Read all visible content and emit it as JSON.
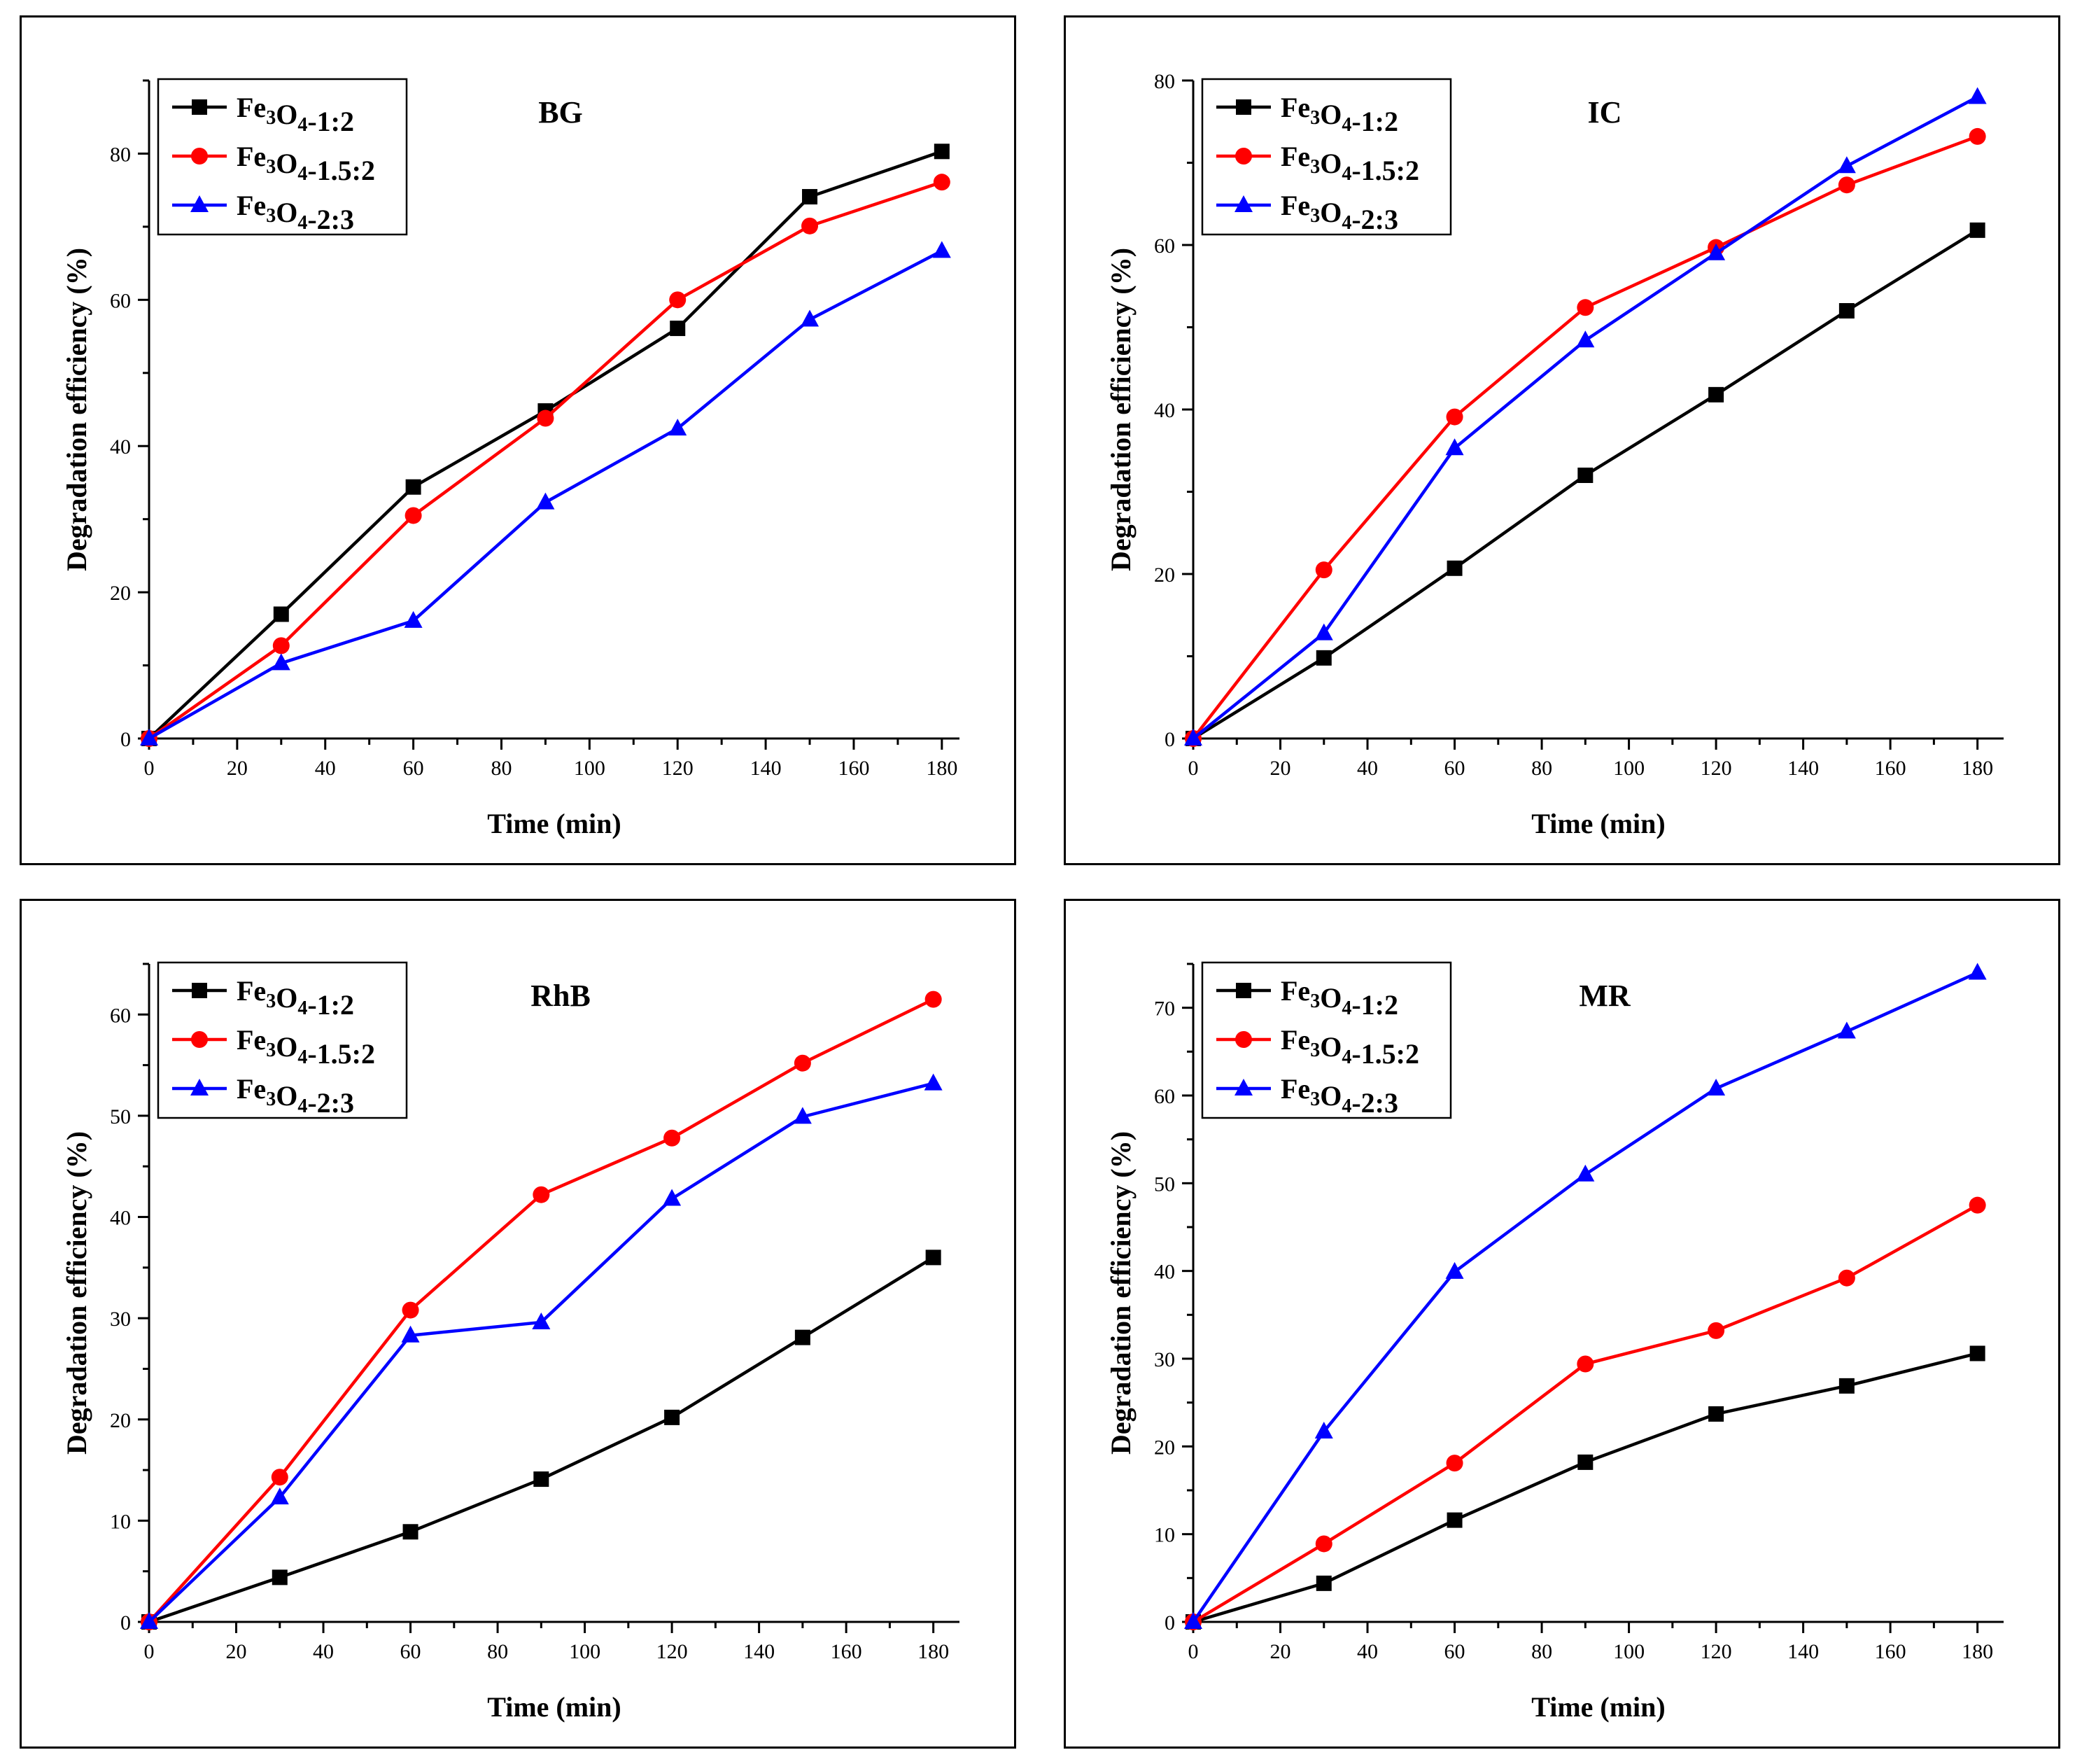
{
  "series_names": [
    "Fe3O4-1:2",
    "Fe3O4-1.5:2",
    "Fe3O4-2:3"
  ],
  "chart_data": [
    {
      "type": "line",
      "title": "BG",
      "xlabel": "Time (min)",
      "ylabel": "Degradation efficiency (%)",
      "x": [
        0,
        30,
        60,
        90,
        120,
        150,
        180
      ],
      "xlim": [
        0,
        184
      ],
      "ylim": [
        0,
        90
      ],
      "xticks": [
        0,
        20,
        40,
        60,
        80,
        100,
        120,
        140,
        160,
        180
      ],
      "yticks": [
        0,
        20,
        40,
        60,
        80
      ],
      "legend_position": "top-left",
      "series": [
        {
          "name": "Fe3O4-1:2",
          "color": "#000000",
          "marker": "square",
          "values": [
            0,
            17.0,
            34.4,
            44.8,
            56.1,
            74.1,
            80.3
          ]
        },
        {
          "name": "Fe3O4-1.5:2",
          "color": "#ff0000",
          "marker": "circle",
          "values": [
            0,
            12.7,
            30.5,
            43.8,
            60.0,
            70.1,
            76.1
          ]
        },
        {
          "name": "Fe3O4-2:3",
          "color": "#0000ff",
          "marker": "triangle",
          "values": [
            0,
            10.3,
            16.1,
            32.3,
            42.4,
            57.3,
            66.7
          ]
        }
      ]
    },
    {
      "type": "line",
      "title": "IC",
      "xlabel": "Time (min)",
      "ylabel": "Degradation efficiency (%)",
      "x": [
        0,
        30,
        60,
        90,
        120,
        150,
        180
      ],
      "xlim": [
        0,
        186
      ],
      "ylim": [
        0,
        80
      ],
      "xticks": [
        0,
        20,
        40,
        60,
        80,
        100,
        120,
        140,
        160,
        180
      ],
      "yticks": [
        0,
        20,
        40,
        60,
        80
      ],
      "legend_position": "top-left",
      "series": [
        {
          "name": "Fe3O4-1:2",
          "color": "#000000",
          "marker": "square",
          "values": [
            0,
            9.8,
            20.7,
            32.0,
            41.8,
            52.0,
            61.8
          ]
        },
        {
          "name": "Fe3O4-1.5:2",
          "color": "#ff0000",
          "marker": "circle",
          "values": [
            0,
            20.5,
            39.1,
            52.4,
            59.7,
            67.3,
            73.2
          ]
        },
        {
          "name": "Fe3O4-2:3",
          "color": "#0000ff",
          "marker": "triangle",
          "values": [
            0,
            12.8,
            35.3,
            48.4,
            59.0,
            69.6,
            78.0
          ]
        }
      ]
    },
    {
      "type": "line",
      "title": "RhB",
      "xlabel": "Time (min)",
      "ylabel": "Degradation efficiency (%)",
      "x": [
        0,
        30,
        60,
        90,
        120,
        150,
        180
      ],
      "xlim": [
        0,
        186
      ],
      "ylim": [
        0,
        65
      ],
      "xticks": [
        0,
        20,
        40,
        60,
        80,
        100,
        120,
        140,
        160,
        180
      ],
      "yticks": [
        0,
        10,
        20,
        30,
        40,
        50,
        60
      ],
      "legend_position": "top-left",
      "series": [
        {
          "name": "Fe3O4-1:2",
          "color": "#000000",
          "marker": "square",
          "values": [
            0,
            4.4,
            8.9,
            14.1,
            20.2,
            28.1,
            36.0
          ]
        },
        {
          "name": "Fe3O4-1.5:2",
          "color": "#ff0000",
          "marker": "circle",
          "values": [
            0,
            14.3,
            30.8,
            42.2,
            47.8,
            55.2,
            61.5
          ]
        },
        {
          "name": "Fe3O4-2:3",
          "color": "#0000ff",
          "marker": "triangle",
          "values": [
            0,
            12.3,
            28.3,
            29.6,
            41.8,
            49.9,
            53.2
          ]
        }
      ]
    },
    {
      "type": "line",
      "title": "MR",
      "xlabel": "Time (min)",
      "ylabel": "Degradation efficiency (%)",
      "x": [
        0,
        30,
        60,
        90,
        120,
        150,
        180
      ],
      "xlim": [
        0,
        186
      ],
      "ylim": [
        0,
        75
      ],
      "xticks": [
        0,
        20,
        40,
        60,
        80,
        100,
        120,
        140,
        160,
        180
      ],
      "yticks": [
        0,
        10,
        20,
        30,
        40,
        50,
        60,
        70
      ],
      "legend_position": "top-left",
      "series": [
        {
          "name": "Fe3O4-1:2",
          "color": "#000000",
          "marker": "square",
          "values": [
            0,
            4.4,
            11.6,
            18.2,
            23.7,
            26.9,
            30.6
          ]
        },
        {
          "name": "Fe3O4-1.5:2",
          "color": "#ff0000",
          "marker": "circle",
          "values": [
            0,
            8.9,
            18.1,
            29.4,
            33.2,
            39.2,
            47.5
          ]
        },
        {
          "name": "Fe3O4-2:3",
          "color": "#0000ff",
          "marker": "triangle",
          "values": [
            0,
            21.7,
            39.9,
            51.0,
            60.8,
            67.3,
            74.0
          ]
        }
      ]
    }
  ]
}
